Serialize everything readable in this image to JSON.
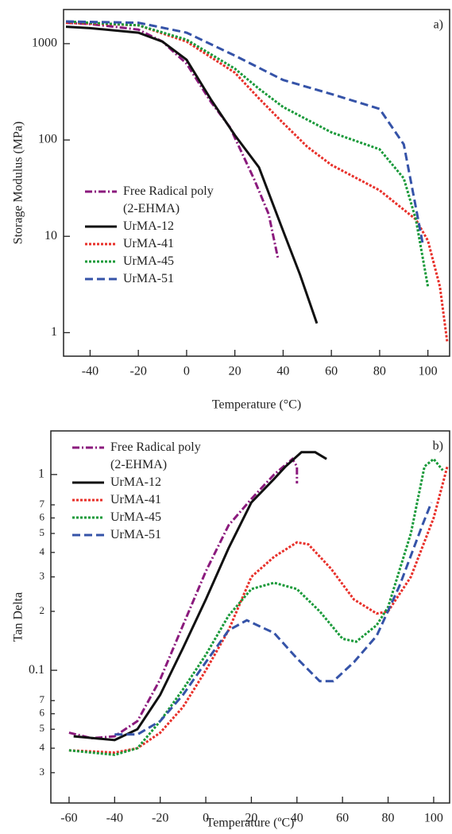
{
  "chart_data": [
    {
      "type": "line",
      "annotation": "a)",
      "xlabel": "Temperature (°C)",
      "ylabel": "Storage Modulus (MPa)",
      "xlim": [
        -51,
        109
      ],
      "xticks": [
        -40,
        -20,
        0,
        20,
        40,
        60,
        80,
        100
      ],
      "ylim": [
        0.57,
        2260
      ],
      "yticks": [
        1,
        10,
        100,
        1000
      ],
      "yscale": "log",
      "legend": "center left",
      "series": [
        {
          "name": "Free Radical poly (2-EHMA)",
          "color": "#8b1a7d",
          "dash": "dash-dot",
          "x": [
            -50,
            -40,
            -20,
            -10,
            0,
            10,
            18,
            28,
            34,
            38
          ],
          "values": [
            1650,
            1600,
            1400,
            1050,
            620,
            250,
            135,
            39,
            17,
            5.7
          ]
        },
        {
          "name": "UrMA-12",
          "color": "#111111",
          "dash": "solid",
          "x": [
            -50,
            -40,
            -20,
            -10,
            0,
            10,
            20,
            30,
            40,
            47,
            54
          ],
          "values": [
            1500,
            1450,
            1300,
            1050,
            680,
            265,
            112,
            52,
            11.4,
            4,
            1.25
          ]
        },
        {
          "name": "UrMA-41",
          "color": "#e8302a",
          "dash": "dotted",
          "x": [
            -50,
            -20,
            0,
            20,
            30,
            40,
            50,
            60,
            80,
            95,
            100,
            105,
            108
          ],
          "values": [
            1650,
            1550,
            1050,
            500,
            270,
            150,
            85,
            55,
            30,
            15,
            9,
            3,
            0.8
          ]
        },
        {
          "name": "UrMA-45",
          "color": "#1a9a3a",
          "dash": "dotted",
          "x": [
            -50,
            -20,
            0,
            20,
            30,
            40,
            60,
            80,
            90,
            95,
            100
          ],
          "values": [
            1700,
            1550,
            1100,
            550,
            340,
            220,
            120,
            80,
            40,
            15,
            3
          ]
        },
        {
          "name": "UrMA-51",
          "color": "#3553a8",
          "dash": "dashed",
          "x": [
            -50,
            -20,
            0,
            20,
            40,
            60,
            80,
            90,
            95,
            98
          ],
          "values": [
            1700,
            1650,
            1300,
            750,
            420,
            300,
            210,
            90,
            20,
            8
          ]
        }
      ]
    },
    {
      "type": "line",
      "annotation": "b)",
      "xlabel": "Temperature (ºC)",
      "ylabel": "Tan Delta",
      "xlim": [
        -68,
        107
      ],
      "xticks": [
        -60,
        -40,
        -20,
        0,
        20,
        40,
        60,
        80,
        100
      ],
      "ylim": [
        0.021,
        1.67
      ],
      "yscale": "log",
      "legend": "upper left",
      "yticks": [
        {
          "value": 0.03,
          "label": "3"
        },
        {
          "value": 0.04,
          "label": "4"
        },
        {
          "value": 0.05,
          "label": "5"
        },
        {
          "value": 0.06,
          "label": "6"
        },
        {
          "value": 0.07,
          "label": "7"
        },
        0.1,
        {
          "value": 0.2,
          "label": "2"
        },
        {
          "value": 0.3,
          "label": "3"
        },
        {
          "value": 0.4,
          "label": "4"
        },
        {
          "value": 0.5,
          "label": "5"
        },
        {
          "value": 0.6,
          "label": "6"
        },
        {
          "value": 0.7,
          "label": "7"
        },
        1
      ],
      "series": [
        {
          "name": "Free Radical poly (2-EHMA)",
          "color": "#8b1a7d",
          "dash": "dash-dot",
          "x": [
            -60,
            -50,
            -40,
            -30,
            -20,
            -10,
            0,
            10,
            20,
            30,
            38,
            40,
            40
          ],
          "values": [
            0.048,
            0.045,
            0.046,
            0.055,
            0.09,
            0.17,
            0.32,
            0.55,
            0.75,
            1.0,
            1.2,
            1.1,
            0.9
          ]
        },
        {
          "name": "UrMA-12",
          "color": "#111111",
          "dash": "solid",
          "x": [
            -58,
            -40,
            -30,
            -20,
            -10,
            0,
            10,
            20,
            30,
            35,
            42,
            48,
            53
          ],
          "values": [
            0.046,
            0.044,
            0.05,
            0.075,
            0.13,
            0.23,
            0.42,
            0.72,
            0.95,
            1.1,
            1.3,
            1.3,
            1.2
          ]
        },
        {
          "name": "UrMA-41",
          "color": "#e8302a",
          "dash": "dotted",
          "x": [
            -60,
            -40,
            -30,
            -20,
            -10,
            0,
            10,
            20,
            30,
            40,
            45,
            55,
            65,
            75,
            80,
            90,
            100,
            106
          ],
          "values": [
            0.039,
            0.038,
            0.04,
            0.048,
            0.065,
            0.1,
            0.16,
            0.3,
            0.38,
            0.45,
            0.44,
            0.33,
            0.23,
            0.195,
            0.2,
            0.3,
            0.6,
            1.1
          ]
        },
        {
          "name": "UrMA-45",
          "color": "#1a9a3a",
          "dash": "dotted",
          "x": [
            -60,
            -40,
            -30,
            -20,
            -10,
            0,
            10,
            20,
            30,
            40,
            50,
            60,
            66,
            75,
            80,
            90,
            96,
            100,
            104
          ],
          "values": [
            0.039,
            0.037,
            0.04,
            0.055,
            0.08,
            0.12,
            0.19,
            0.26,
            0.28,
            0.26,
            0.2,
            0.145,
            0.14,
            0.17,
            0.21,
            0.5,
            1.1,
            1.2,
            1.05
          ]
        },
        {
          "name": "UrMA-51",
          "color": "#3553a8",
          "dash": "dashed",
          "x": [
            -40,
            -30,
            -20,
            -10,
            0,
            10,
            18,
            30,
            40,
            50,
            56,
            65,
            75,
            85,
            95,
            99
          ],
          "values": [
            0.047,
            0.047,
            0.055,
            0.075,
            0.11,
            0.16,
            0.18,
            0.155,
            0.115,
            0.088,
            0.088,
            0.11,
            0.15,
            0.27,
            0.55,
            0.72
          ]
        }
      ]
    }
  ]
}
